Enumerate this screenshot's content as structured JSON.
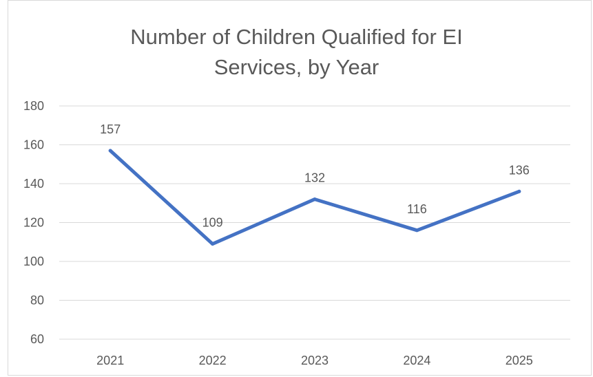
{
  "chart_data": {
    "type": "line",
    "title_lines": [
      "Number of Children Qualified for EI",
      "Services, by Year"
    ],
    "categories": [
      "2021",
      "2022",
      "2023",
      "2024",
      "2025"
    ],
    "series": [
      {
        "values": [
          157,
          109,
          132,
          116,
          136
        ],
        "color": "#4472c4"
      }
    ],
    "data_labels": [
      "157",
      "109",
      "132",
      "116",
      "136"
    ],
    "yticks": [
      "60",
      "80",
      "100",
      "120",
      "140",
      "160",
      "180"
    ],
    "ylim": [
      60,
      180
    ],
    "grid": true,
    "legend": "none",
    "colors": {
      "line": "#4472c4",
      "grid": "#d9d9d9",
      "text": "#595959"
    }
  }
}
